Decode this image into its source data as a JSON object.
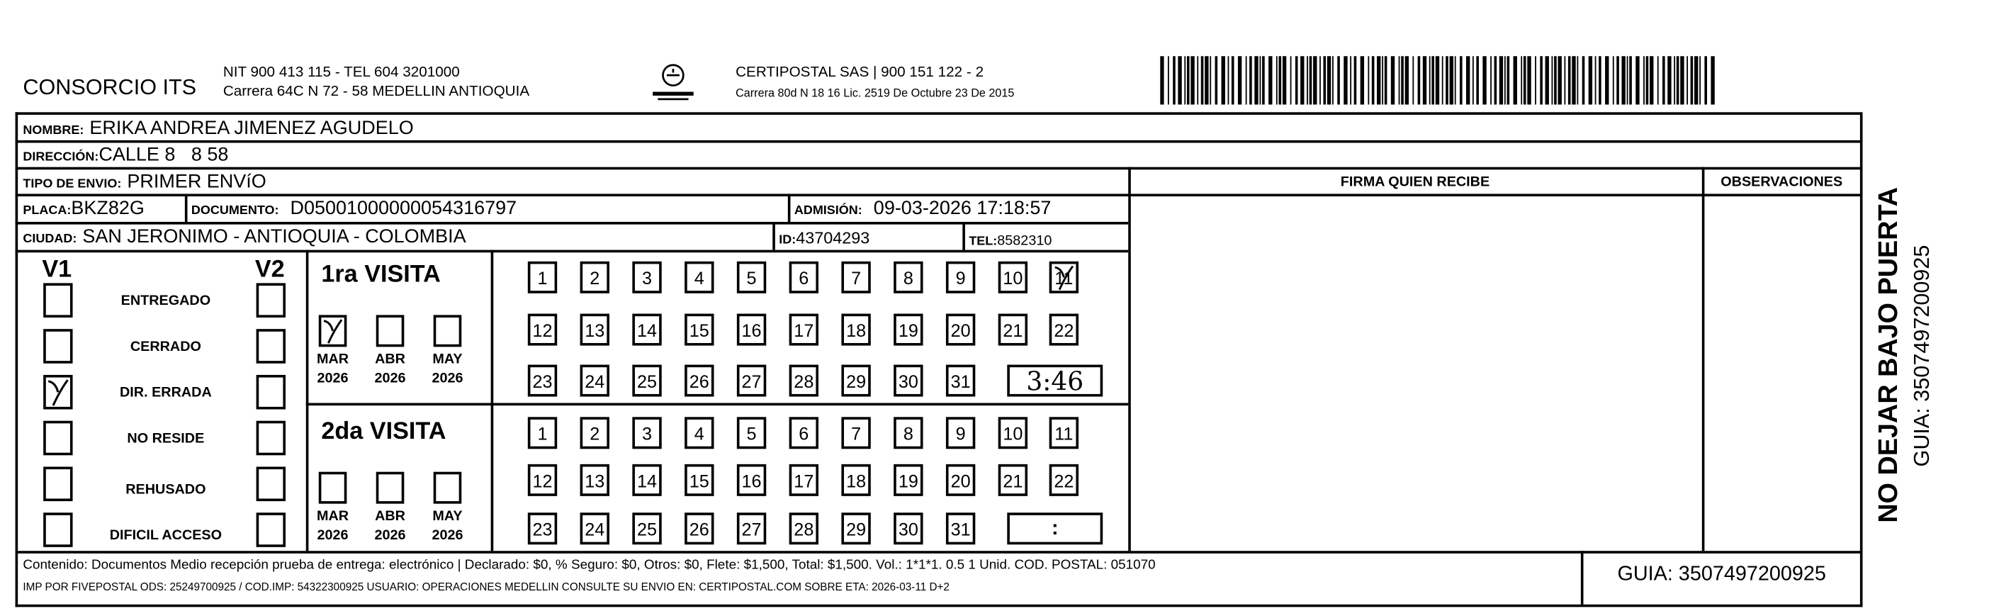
{
  "header": {
    "company": "CONSORCIO ITS",
    "company_nit": "NIT 900 413 115 - TEL 604 3201000",
    "company_address": "Carrera 64C N 72 - 58 MEDELLIN ANTIOQUIA",
    "logo_text": "CERTIPOSTAL",
    "carrier": "CERTIPOSTAL SAS | 900 151 122 - 2",
    "carrier_address": "Carrera 80d N 18 16  Lic. 2519 De Octubre 23 De 2015",
    "barcode_icon": "barcode"
  },
  "recipient": {
    "nombre_label": "NOMBRE:",
    "nombre": "ERIKA ANDREA JIMENEZ AGUDELO",
    "direccion_label": "DIRECCIÓN:",
    "direccion": "CALLE 8   8 58",
    "tipo_label": "TIPO DE ENVIO:",
    "tipo": "PRIMER ENVíO",
    "placa_label": "PLACA:",
    "placa": "BKZ82G",
    "documento_label": "DOCUMENTO:",
    "documento": "D05001000000054316797",
    "admision_label": "ADMISIÓN:",
    "admision": "09-03-2026 17:18:57",
    "ciudad_label": "CIUDAD:",
    "ciudad": "SAN JERONIMO - ANTIOQUIA - COLOMBIA",
    "id_label": "ID:",
    "id": "43704293",
    "tel_label": "TEL:",
    "tel": "8582310"
  },
  "signature": {
    "firma_label": "FIRMA QUIEN RECIBE",
    "observaciones_label": "OBSERVACIONES"
  },
  "status": {
    "v1_label": "V1",
    "v2_label": "V2",
    "items": [
      {
        "label": "ENTREGADO",
        "v1": false,
        "v2": false
      },
      {
        "label": "CERRADO",
        "v1": false,
        "v2": false
      },
      {
        "label": "DIR. ERRADA",
        "v1": true,
        "v2": false
      },
      {
        "label": "NO RESIDE",
        "v1": false,
        "v2": false
      },
      {
        "label": "REHUSADO",
        "v1": false,
        "v2": false
      },
      {
        "label": "DIFICIL ACCESO",
        "v1": false,
        "v2": false
      }
    ]
  },
  "visits": [
    {
      "title": "1ra VISITA",
      "months": [
        {
          "month": "MAR",
          "year": "2026",
          "checked": true
        },
        {
          "month": "ABR",
          "year": "2026",
          "checked": false
        },
        {
          "month": "MAY",
          "year": "2026",
          "checked": false
        }
      ],
      "days": [
        "1",
        "2",
        "3",
        "4",
        "5",
        "6",
        "7",
        "8",
        "9",
        "10",
        "11",
        "12",
        "13",
        "14",
        "15",
        "16",
        "17",
        "18",
        "19",
        "20",
        "21",
        "22",
        "23",
        "24",
        "25",
        "26",
        "27",
        "28",
        "29",
        "30",
        "31"
      ],
      "marked_day": "11",
      "time": "3:46"
    },
    {
      "title": "2da VISITA",
      "months": [
        {
          "month": "MAR",
          "year": "2026",
          "checked": false
        },
        {
          "month": "ABR",
          "year": "2026",
          "checked": false
        },
        {
          "month": "MAY",
          "year": "2026",
          "checked": false
        }
      ],
      "days": [
        "1",
        "2",
        "3",
        "4",
        "5",
        "6",
        "7",
        "8",
        "9",
        "10",
        "11",
        "12",
        "13",
        "14",
        "15",
        "16",
        "17",
        "18",
        "19",
        "20",
        "21",
        "22",
        "23",
        "24",
        "25",
        "26",
        "27",
        "28",
        "29",
        "30",
        "31"
      ],
      "marked_day": null,
      "time": ":"
    }
  ],
  "footer": {
    "contenido": "Contenido: Documentos Medio recepción prueba de entrega: electrónico | Declarado: $0, % Seguro: $0, Otros: $0, Flete: $1,500, Total: $1,500. Vol.: 1*1*1. 0.5  1 Unid. COD. POSTAL: 051070",
    "imp": "IMP POR FIVEPOSTAL ODS: 25249700925 / COD.IMP: 54322300925 USUARIO: OPERACIONES MEDELLIN CONSULTE SU ENVIO EN: CERTIPOSTAL.COM SOBRE ETA: 2026-03-11 D+2",
    "guia": "GUIA: 3507497200925"
  },
  "side": {
    "warning": "NO DEJAR BAJO PUERTA",
    "guia": "GUIA: 3507497200925"
  }
}
